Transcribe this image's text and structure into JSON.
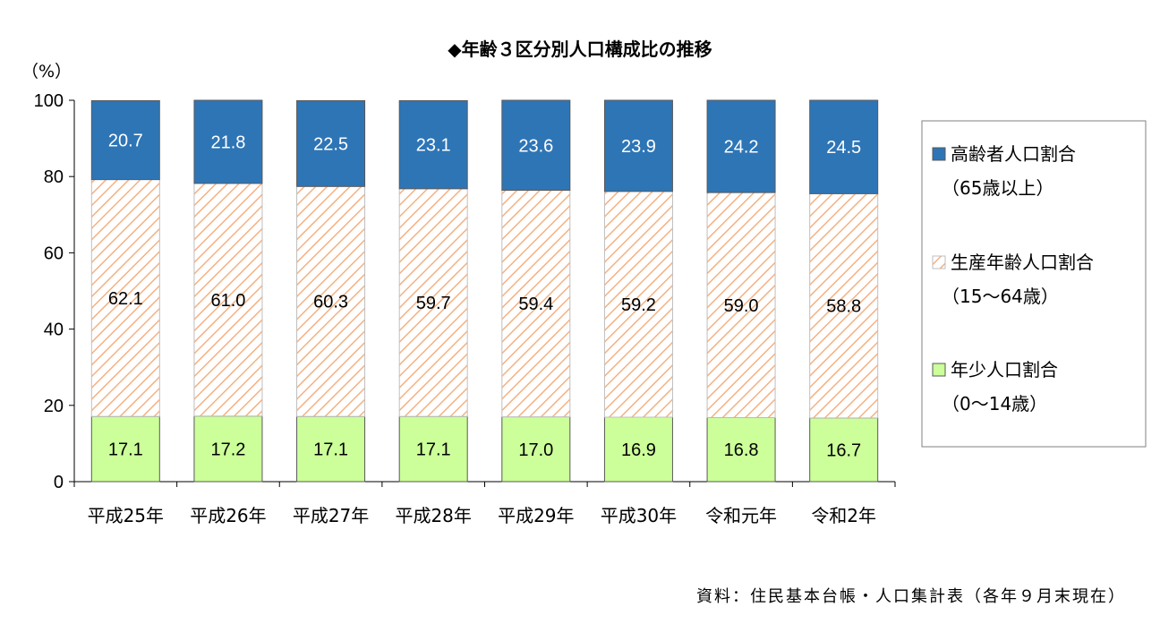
{
  "chart_data": {
    "type": "bar",
    "stacked": true,
    "title": "◆年齢３区分別人口構成比の推移",
    "ylabel": "（%）",
    "xlabel": "",
    "ylim": [
      0,
      100
    ],
    "yticks": [
      0,
      20,
      40,
      60,
      80,
      100
    ],
    "grid": false,
    "legend_position": "right",
    "categories": [
      "平成25年",
      "平成26年",
      "平成27年",
      "平成28年",
      "平成29年",
      "平成30年",
      "令和元年",
      "令和2年"
    ],
    "series": [
      {
        "name": "年少人口割合",
        "legend_sub": "（0〜14歳）",
        "values": [
          17.1,
          17.2,
          17.1,
          17.1,
          17.0,
          16.9,
          16.8,
          16.7
        ],
        "labels": [
          "17.1",
          "17.2",
          "17.1",
          "17.1",
          "17.0",
          "16.9",
          "16.8",
          "16.7"
        ],
        "color": "#ccff99",
        "pattern": "solid",
        "label_color": "#000000"
      },
      {
        "name": "生産年齢人口割合",
        "legend_sub": "（15〜64歳）",
        "values": [
          62.1,
          61.0,
          60.3,
          59.7,
          59.4,
          59.2,
          59.0,
          58.8
        ],
        "labels": [
          "62.1",
          "61.0",
          "60.3",
          "59.7",
          "59.4",
          "59.2",
          "59.0",
          "58.8"
        ],
        "color": "#f4b183",
        "pattern": "diagonal-hatch",
        "label_color": "#000000"
      },
      {
        "name": "高齢者人口割合",
        "legend_sub": "（65歳以上）",
        "values": [
          20.7,
          21.8,
          22.5,
          23.1,
          23.6,
          23.9,
          24.2,
          24.5
        ],
        "labels": [
          "20.7",
          "21.8",
          "22.5",
          "23.1",
          "23.6",
          "23.9",
          "24.2",
          "24.5"
        ],
        "color": "#2e75b6",
        "pattern": "solid",
        "label_color": "#ffffff"
      }
    ],
    "source_note": "資料：住民基本台帳・人口集計表（各年９月末現在）"
  }
}
